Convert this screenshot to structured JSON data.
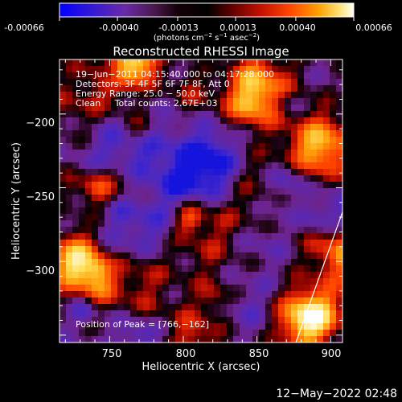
{
  "colorbar": {
    "ticks": [
      "-0.00066",
      "-0.00040",
      "-0.00013",
      "0.00013",
      "0.00040",
      "0.00066"
    ],
    "tick_values": [
      -0.00066,
      -0.0004,
      -0.00013,
      0.00013,
      0.0004,
      0.00066
    ],
    "range": [
      -0.00066,
      0.00066
    ],
    "units_prefix": "(photons cm",
    "units_exp1": "−2",
    "units_mid1": " s",
    "units_exp2": "−1",
    "units_mid2": " asec",
    "units_exp3": "−2",
    "units_suffix": ")",
    "colors": [
      "#0000ff",
      "#5a1fb0",
      "#7a2e9a",
      "#2a0f1e",
      "#000000",
      "#7a0000",
      "#cc1100",
      "#ff4400",
      "#ff9900",
      "#ffdd44",
      "#ffffff"
    ]
  },
  "plot": {
    "title": "Reconstructed RHESSI Image",
    "xlabel": "Heliocentric X (arcsec)",
    "ylabel": "Heliocentric Y (arcsec)",
    "xlim": [
      716,
      908
    ],
    "ylim": [
      -355,
      -163
    ],
    "xticks": [
      750,
      800,
      850,
      900
    ],
    "yticks": [
      -200,
      -250,
      -300
    ],
    "xtick_labels": [
      "750",
      "800",
      "850",
      "900"
    ],
    "ytick_labels": [
      "−200",
      "−250",
      "−300"
    ]
  },
  "annotations": {
    "line1": "19−Jun−2011 04:15:40.000 to 04:17:28.000",
    "line2": "Detectors: 3F 4F 5F 6F 7F 8F, Att 0",
    "line3": "Energy Range: 25.0 − 50.0 keV",
    "line4": "Clean     Total counts: 2.67E+03",
    "peak": "Position of Peak = [766,−162]"
  },
  "timestamp": "12−May−2022 02:48"
}
